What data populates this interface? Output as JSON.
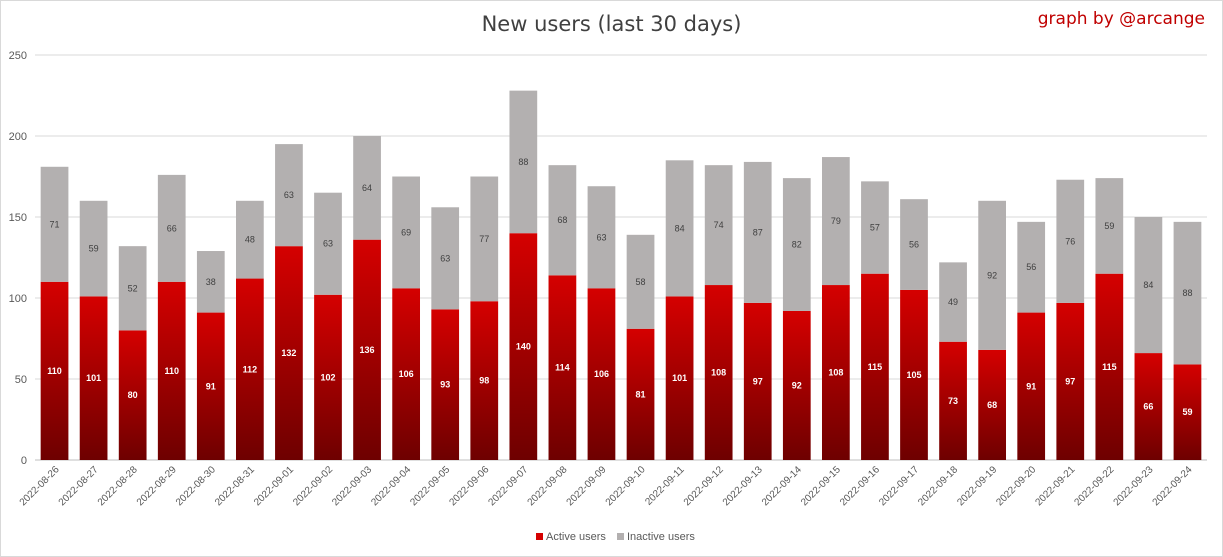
{
  "header": {
    "title": "New users (last 30 days)",
    "credit": "graph by @arcange"
  },
  "colors": {
    "active_top": "#d50000",
    "active_bottom": "#6e0000",
    "inactive": "#b3b0b0",
    "grid": "#d9d9d9"
  },
  "chart_data": {
    "type": "bar",
    "stacked": true,
    "title": "New users (last 30 days)",
    "xlabel": "",
    "ylabel": "",
    "ylim": [
      0,
      250
    ],
    "yticks": [
      0,
      50,
      100,
      150,
      200,
      250
    ],
    "grid": true,
    "legend_position": "bottom",
    "categories": [
      "2022-08-26",
      "2022-08-27",
      "2022-08-28",
      "2022-08-29",
      "2022-08-30",
      "2022-08-31",
      "2022-09-01",
      "2022-09-02",
      "2022-09-03",
      "2022-09-04",
      "2022-09-05",
      "2022-09-06",
      "2022-09-07",
      "2022-09-08",
      "2022-09-09",
      "2022-09-10",
      "2022-09-11",
      "2022-09-12",
      "2022-09-13",
      "2022-09-14",
      "2022-09-15",
      "2022-09-16",
      "2022-09-17",
      "2022-09-18",
      "2022-09-19",
      "2022-09-20",
      "2022-09-21",
      "2022-09-22",
      "2022-09-23",
      "2022-09-24"
    ],
    "series": [
      {
        "name": "Active users",
        "values": [
          110,
          101,
          80,
          110,
          91,
          112,
          132,
          102,
          136,
          106,
          93,
          98,
          140,
          114,
          106,
          81,
          101,
          108,
          97,
          92,
          108,
          115,
          105,
          73,
          68,
          91,
          97,
          115,
          66,
          59
        ]
      },
      {
        "name": "Inactive users",
        "values": [
          71,
          59,
          52,
          66,
          38,
          48,
          63,
          63,
          64,
          69,
          63,
          77,
          88,
          68,
          63,
          58,
          84,
          74,
          87,
          82,
          79,
          57,
          56,
          49,
          92,
          56,
          76,
          59,
          84,
          88
        ]
      }
    ]
  }
}
